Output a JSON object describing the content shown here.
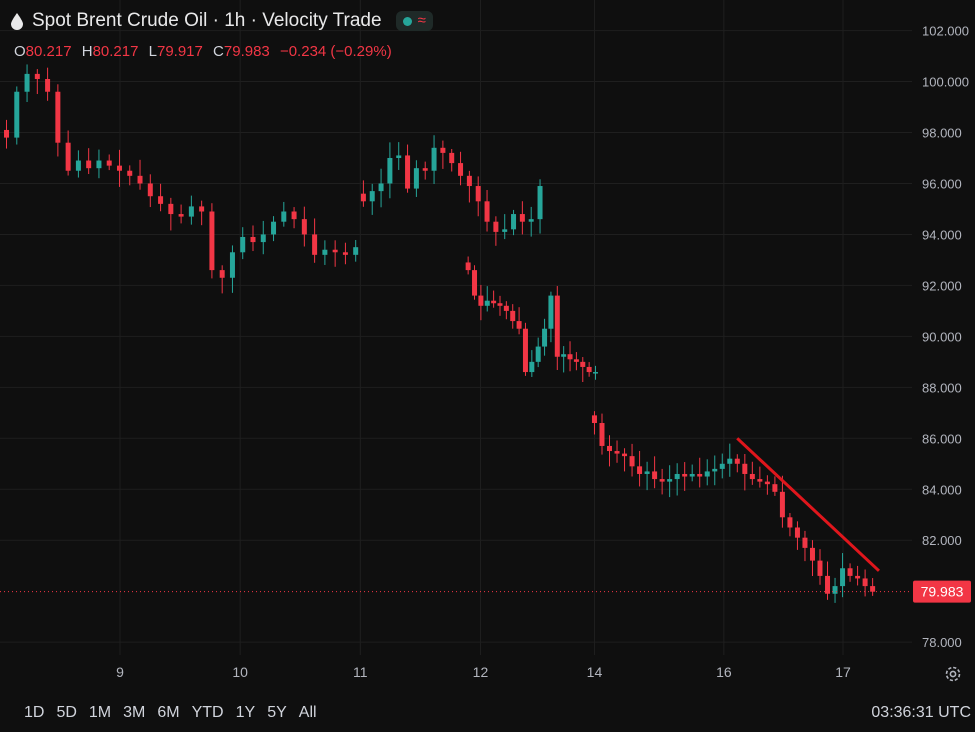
{
  "header": {
    "title": "Spot Brent Crude Oil · 1h · Velocity Trade",
    "wave_glyph": "≈"
  },
  "ohlc": {
    "o_label": "O",
    "o_value": "80.217",
    "h_label": "H",
    "h_value": "80.217",
    "l_label": "L",
    "l_value": "79.917",
    "c_label": "C",
    "c_value": "79.983",
    "change": "−0.234 (−0.29%)"
  },
  "price_label": "79.983",
  "ranges": [
    "1D",
    "5D",
    "1M",
    "3M",
    "6M",
    "YTD",
    "1Y",
    "5Y",
    "All"
  ],
  "time": "03:36:31 UTC",
  "icons": {
    "drop": "drop-icon",
    "status": "status-dot-icon",
    "wave": "wave-icon",
    "settings": "gear-icon"
  },
  "colors": {
    "up": "#26a69a",
    "down": "#f23645",
    "trendline": "#e0161c",
    "background": "#0f0f0f",
    "grid": "#1f1f1f"
  },
  "chart_data": {
    "type": "candlestick",
    "ylim": [
      77.3,
      103.2
    ],
    "y_ticks": [
      "102.000",
      "100.000",
      "98.000",
      "96.000",
      "94.000",
      "92.000",
      "90.000",
      "88.000",
      "86.000",
      "84.000",
      "82.000",
      "78.000"
    ],
    "x_ticks": [
      "9",
      "10",
      "11",
      "12",
      "14",
      "16",
      "17"
    ],
    "x_tick_units": [
      11.1,
      22.8,
      34.5,
      46.2,
      57.3,
      69.9,
      81.5
    ],
    "last_price": 79.983,
    "closes": [
      97.8,
      99.6,
      100.3,
      100.1,
      99.6,
      97.6,
      96.5,
      96.9,
      96.6,
      96.9,
      96.7,
      96.5,
      96.3,
      96.0,
      95.5,
      95.2,
      94.8,
      94.7,
      95.1,
      94.9,
      92.6,
      92.3,
      93.3,
      93.9,
      93.7,
      94.0,
      94.5,
      94.9,
      94.6,
      94.0,
      93.2,
      93.4,
      93.3,
      93.2,
      93.5,
      95.3,
      95.7,
      96.0,
      97.0,
      97.1,
      95.8,
      96.6,
      96.5,
      97.4,
      97.2,
      96.8,
      96.3,
      95.9,
      95.3,
      94.5,
      94.1,
      94.2,
      94.8,
      94.5,
      94.6,
      95.9,
      92.6,
      91.6,
      91.2,
      91.4,
      91.3,
      91.2,
      91.0,
      90.6,
      90.3,
      88.6,
      89.0,
      89.6,
      90.3,
      91.6,
      89.2,
      89.3,
      89.1,
      89.0,
      88.8,
      88.6,
      88.6,
      86.6,
      85.7,
      85.5,
      85.4,
      85.3,
      84.9,
      84.6,
      84.7,
      84.4,
      84.3,
      84.4,
      84.6,
      84.5,
      84.6,
      84.5,
      84.7,
      84.8,
      85.0,
      85.2,
      85.0,
      84.6,
      84.4,
      84.3,
      84.2,
      83.9,
      82.9,
      82.5,
      82.1,
      81.7,
      81.2,
      80.6,
      79.9,
      80.2,
      80.9,
      80.6,
      80.5,
      80.2,
      79.98
    ],
    "segments": [
      [
        0,
        35
      ],
      [
        35,
        56
      ],
      [
        56,
        77
      ],
      [
        77,
        115
      ]
    ],
    "x_units": [
      [
        1.0,
        0.8
      ],
      [
        57.3,
        1.0
      ],
      [
        57.9,
        0.95
      ]
    ],
    "trendline": {
      "from": [
        71.2,
        86.0
      ],
      "to": [
        85.0,
        80.8
      ]
    }
  }
}
